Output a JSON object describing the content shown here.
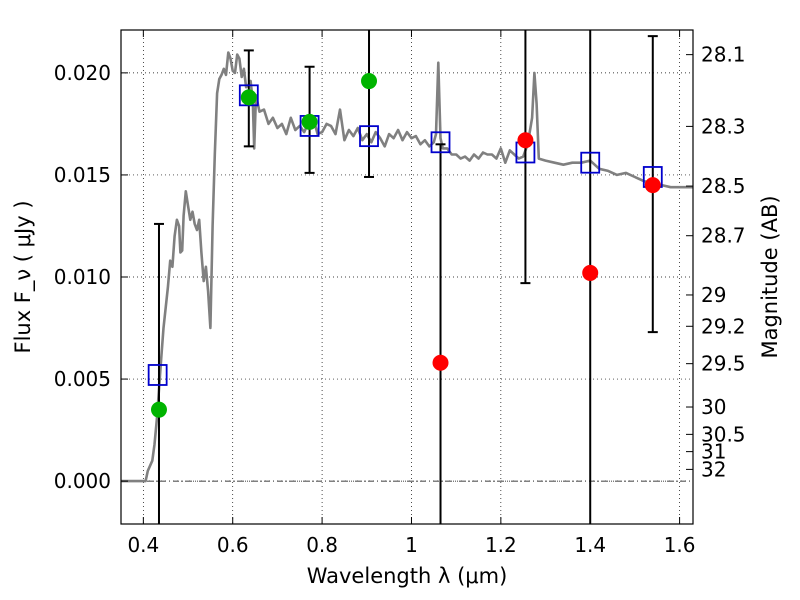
{
  "chart_data": {
    "type": "scatter",
    "xlabel": "Wavelength  λ (μm)",
    "ylabel_left": "Flux  F_ν  ( μJy )",
    "ylabel_right": "Magnitude (AB)",
    "xlim": [
      0.35,
      1.63
    ],
    "ylim": [
      -0.0021,
      0.0221
    ],
    "grid": true,
    "x_ticks": [
      0.4,
      0.6,
      0.8,
      1.0,
      1.2,
      1.4,
      1.6
    ],
    "x_tick_labels": [
      "0.4",
      "0.6",
      "0.8",
      "1",
      "1.2",
      "1.4",
      "1.6"
    ],
    "y_ticks": [
      0.0,
      0.005,
      0.01,
      0.015,
      0.02
    ],
    "y_tick_labels": [
      "0.000",
      "0.005",
      "0.010",
      "0.015",
      "0.020"
    ],
    "mag_ticks": [
      {
        "mag": 28.1,
        "label": "28.1"
      },
      {
        "mag": 28.3,
        "label": "28.3"
      },
      {
        "mag": 28.5,
        "label": "28.5"
      },
      {
        "mag": 28.7,
        "label": "28.7"
      },
      {
        "mag": 29.0,
        "label": "29"
      },
      {
        "mag": 29.2,
        "label": "29.2"
      },
      {
        "mag": 29.5,
        "label": "29.5"
      },
      {
        "mag": 30.0,
        "label": "30"
      },
      {
        "mag": 30.5,
        "label": "30.5"
      },
      {
        "mag": 31.0,
        "label": "31"
      },
      {
        "mag": 32.0,
        "label": "32"
      }
    ],
    "zero_line": 0.0,
    "series": [
      {
        "kind": "spectrum",
        "color": "#808080",
        "points": [
          [
            0.35,
            0.0
          ],
          [
            0.405,
            0.0
          ],
          [
            0.41,
            0.0005
          ],
          [
            0.42,
            0.001
          ],
          [
            0.425,
            0.0018
          ],
          [
            0.43,
            0.003
          ],
          [
            0.435,
            0.0045
          ],
          [
            0.44,
            0.006
          ],
          [
            0.445,
            0.0075
          ],
          [
            0.45,
            0.0085
          ],
          [
            0.455,
            0.0095
          ],
          [
            0.46,
            0.0108
          ],
          [
            0.465,
            0.0105
          ],
          [
            0.47,
            0.012
          ],
          [
            0.475,
            0.0128
          ],
          [
            0.48,
            0.0125
          ],
          [
            0.483,
            0.0112
          ],
          [
            0.487,
            0.0113
          ],
          [
            0.49,
            0.013
          ],
          [
            0.495,
            0.0142
          ],
          [
            0.5,
            0.0135
          ],
          [
            0.505,
            0.0128
          ],
          [
            0.51,
            0.0132
          ],
          [
            0.515,
            0.0126
          ],
          [
            0.52,
            0.0123
          ],
          [
            0.525,
            0.0128
          ],
          [
            0.53,
            0.0112
          ],
          [
            0.535,
            0.0098
          ],
          [
            0.54,
            0.0105
          ],
          [
            0.545,
            0.0093
          ],
          [
            0.55,
            0.0075
          ],
          [
            0.555,
            0.0125
          ],
          [
            0.56,
            0.016
          ],
          [
            0.565,
            0.019
          ],
          [
            0.57,
            0.0197
          ],
          [
            0.575,
            0.0199
          ],
          [
            0.58,
            0.0202
          ],
          [
            0.585,
            0.0199
          ],
          [
            0.59,
            0.021
          ],
          [
            0.595,
            0.0207
          ],
          [
            0.6,
            0.0201
          ],
          [
            0.605,
            0.02
          ],
          [
            0.61,
            0.0209
          ],
          [
            0.615,
            0.0207
          ],
          [
            0.62,
            0.0198
          ],
          [
            0.625,
            0.0202
          ],
          [
            0.63,
            0.0193
          ],
          [
            0.635,
            0.0194
          ],
          [
            0.64,
            0.0196
          ],
          [
            0.645,
            0.0186
          ],
          [
            0.648,
            0.0163
          ],
          [
            0.652,
            0.0189
          ],
          [
            0.66,
            0.0181
          ],
          [
            0.67,
            0.0182
          ],
          [
            0.68,
            0.0175
          ],
          [
            0.69,
            0.0178
          ],
          [
            0.7,
            0.0173
          ],
          [
            0.71,
            0.0175
          ],
          [
            0.72,
            0.017
          ],
          [
            0.73,
            0.0178
          ],
          [
            0.74,
            0.0172
          ],
          [
            0.75,
            0.0174
          ],
          [
            0.76,
            0.0171
          ],
          [
            0.77,
            0.0176
          ],
          [
            0.78,
            0.0178
          ],
          [
            0.79,
            0.017
          ],
          [
            0.8,
            0.0171
          ],
          [
            0.81,
            0.0175
          ],
          [
            0.82,
            0.0174
          ],
          [
            0.83,
            0.017
          ],
          [
            0.84,
            0.0182
          ],
          [
            0.85,
            0.0167
          ],
          [
            0.86,
            0.0172
          ],
          [
            0.87,
            0.0169
          ],
          [
            0.88,
            0.0173
          ],
          [
            0.89,
            0.0167
          ],
          [
            0.9,
            0.017
          ],
          [
            0.91,
            0.0166
          ],
          [
            0.92,
            0.0171
          ],
          [
            0.93,
            0.0168
          ],
          [
            0.94,
            0.0164
          ],
          [
            0.95,
            0.017
          ],
          [
            0.96,
            0.0168
          ],
          [
            0.97,
            0.0172
          ],
          [
            0.98,
            0.0167
          ],
          [
            0.99,
            0.0171
          ],
          [
            1.0,
            0.0168
          ],
          [
            1.01,
            0.0169
          ],
          [
            1.02,
            0.0165
          ],
          [
            1.03,
            0.0167
          ],
          [
            1.04,
            0.0164
          ],
          [
            1.05,
            0.0166
          ],
          [
            1.055,
            0.017
          ],
          [
            1.06,
            0.0205
          ],
          [
            1.065,
            0.0168
          ],
          [
            1.07,
            0.0163
          ],
          [
            1.08,
            0.0163
          ],
          [
            1.09,
            0.016
          ],
          [
            1.1,
            0.016
          ],
          [
            1.11,
            0.0158
          ],
          [
            1.12,
            0.0159
          ],
          [
            1.13,
            0.0157
          ],
          [
            1.14,
            0.016
          ],
          [
            1.15,
            0.0158
          ],
          [
            1.16,
            0.0161
          ],
          [
            1.17,
            0.016
          ],
          [
            1.18,
            0.016
          ],
          [
            1.19,
            0.0158
          ],
          [
            1.2,
            0.0163
          ],
          [
            1.21,
            0.0156
          ],
          [
            1.22,
            0.0162
          ],
          [
            1.23,
            0.016
          ],
          [
            1.24,
            0.0158
          ],
          [
            1.25,
            0.0159
          ],
          [
            1.26,
            0.0165
          ],
          [
            1.27,
            0.0178
          ],
          [
            1.275,
            0.02
          ],
          [
            1.28,
            0.0185
          ],
          [
            1.285,
            0.0158
          ],
          [
            1.3,
            0.0157
          ],
          [
            1.32,
            0.0156
          ],
          [
            1.34,
            0.0155
          ],
          [
            1.36,
            0.0156
          ],
          [
            1.38,
            0.0156
          ],
          [
            1.4,
            0.0157
          ],
          [
            1.42,
            0.0153
          ],
          [
            1.44,
            0.0152
          ],
          [
            1.46,
            0.015
          ],
          [
            1.48,
            0.0151
          ],
          [
            1.5,
            0.0149
          ],
          [
            1.52,
            0.0147
          ],
          [
            1.54,
            0.0146
          ],
          [
            1.56,
            0.0145
          ],
          [
            1.58,
            0.0144
          ],
          [
            1.6,
            0.0144
          ],
          [
            1.63,
            0.0144
          ]
        ]
      },
      {
        "kind": "model-photometry",
        "marker": "open-square",
        "color": "#0000cc",
        "points": [
          [
            0.432,
            0.0052
          ],
          [
            0.636,
            0.0189
          ],
          [
            0.772,
            0.0174
          ],
          [
            0.905,
            0.0169
          ],
          [
            1.065,
            0.0166
          ],
          [
            1.255,
            0.0161
          ],
          [
            1.4,
            0.0156
          ],
          [
            1.54,
            0.0149
          ]
        ]
      },
      {
        "kind": "detections",
        "marker": "filled-circle",
        "color": "#00b400",
        "points": [
          [
            0.435,
            0.0035
          ],
          [
            0.636,
            0.0188
          ],
          [
            0.772,
            0.0176
          ],
          [
            0.905,
            0.0196
          ]
        ]
      },
      {
        "kind": "upper-limits",
        "marker": "filled-circle",
        "color": "#ff0000",
        "points": [
          [
            1.065,
            0.0058
          ],
          [
            1.255,
            0.0167
          ],
          [
            1.4,
            0.0102
          ],
          [
            1.54,
            0.0145
          ]
        ]
      }
    ],
    "error_bars": [
      {
        "x": 0.435,
        "low": -0.0021,
        "high": 0.0126
      },
      {
        "x": 0.636,
        "low": 0.0164,
        "high": 0.0211
      },
      {
        "x": 0.772,
        "low": 0.0151,
        "high": 0.0203
      },
      {
        "x": 0.905,
        "low": 0.0149,
        "high": 0.0221
      },
      {
        "x": 1.065,
        "low": -0.0021,
        "high": 0.0165
      },
      {
        "x": 1.255,
        "low": 0.0097,
        "high": 0.0221
      },
      {
        "x": 1.4,
        "low": -0.0021,
        "high": 0.0221
      },
      {
        "x": 1.54,
        "low": 0.0073,
        "high": 0.0218
      }
    ]
  }
}
